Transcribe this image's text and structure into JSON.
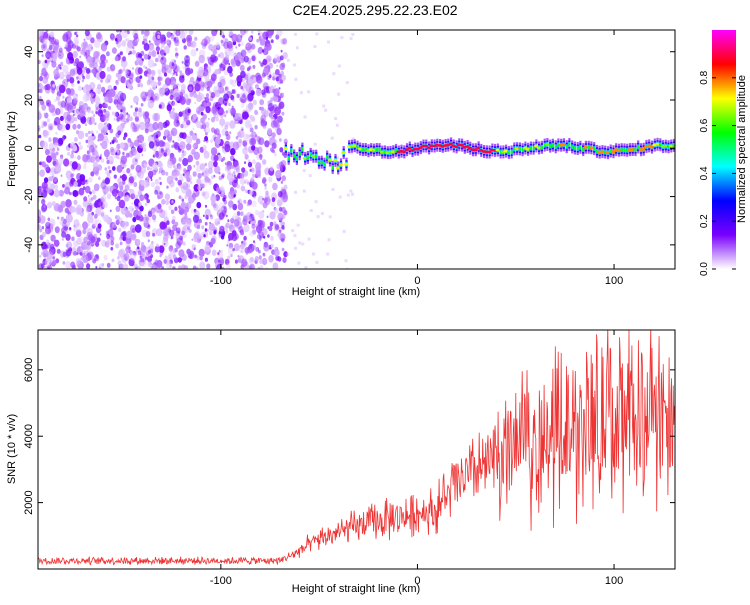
{
  "title": "C2E4.2025.295.22.23.E02",
  "chart_data": [
    {
      "type": "heatmap",
      "name": "spectrogram",
      "xlabel": "Height of straight line (km)",
      "ylabel": "Frequency (Hz)",
      "xlim": [
        -193,
        131
      ],
      "ylim": [
        -50,
        49
      ],
      "xticks": [
        -100,
        0,
        100
      ],
      "xtick_labels": [
        "-100",
        "0",
        "100"
      ],
      "yticks": [
        -40,
        -20,
        0,
        20,
        40
      ],
      "ytick_labels": [
        "-40",
        "-20",
        "0",
        "20",
        "40"
      ],
      "noise_region_km": [
        -193,
        -67
      ],
      "signal_line_hz": 0,
      "signal_start_km": -67,
      "colorbar": {
        "label": "Normalized spectral amplitude",
        "range": [
          0,
          1
        ],
        "ticks": [
          0.0,
          0.2,
          0.4,
          0.6,
          0.8
        ],
        "tick_labels": [
          "0.0",
          "0.2",
          "0.4",
          "0.6",
          "0.8"
        ],
        "colors": [
          "#ffffff",
          "#7a00ff",
          "#0000ff",
          "#00ffff",
          "#00ff00",
          "#ffff00",
          "#ff0000",
          "#ff00ff"
        ]
      }
    },
    {
      "type": "line",
      "name": "snr",
      "xlabel": "Height of straight line (km)",
      "ylabel": "SNR (10 * v/v)",
      "xlim": [
        -193,
        131
      ],
      "ylim": [
        0,
        7200
      ],
      "xticks": [
        -100,
        0,
        100
      ],
      "xtick_labels": [
        "-100",
        "0",
        "100"
      ],
      "yticks": [
        2000,
        4000,
        6000
      ],
      "ytick_labels": [
        "2000",
        "4000",
        "6000"
      ],
      "line_color": "#ee3333",
      "envelope_points": [
        {
          "x": -193,
          "y": 250
        },
        {
          "x": -70,
          "y": 250
        },
        {
          "x": -64,
          "y": 420
        },
        {
          "x": -50,
          "y": 900
        },
        {
          "x": -30,
          "y": 1300
        },
        {
          "x": -10,
          "y": 1550
        },
        {
          "x": 10,
          "y": 1800
        },
        {
          "x": 20,
          "y": 2600
        },
        {
          "x": 30,
          "y": 2900
        },
        {
          "x": 40,
          "y": 3300
        },
        {
          "x": 55,
          "y": 3700
        },
        {
          "x": 70,
          "y": 4000
        },
        {
          "x": 90,
          "y": 4300
        },
        {
          "x": 110,
          "y": 4700
        },
        {
          "x": 131,
          "y": 4600
        }
      ]
    }
  ]
}
